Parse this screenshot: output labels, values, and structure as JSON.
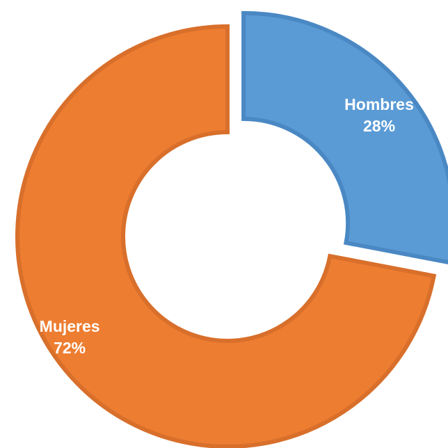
{
  "chart_data": {
    "type": "pie",
    "variant": "doughnut",
    "exploded_slice": "Hombres",
    "categories": [
      "Hombres",
      "Mujeres"
    ],
    "values": [
      28,
      72
    ],
    "percent_labels": [
      "28%",
      "72%"
    ],
    "colors": [
      "#5B9BD5",
      "#ED7D31"
    ],
    "border_colors": [
      "#4A88C4",
      "#D86F2B"
    ],
    "title": "",
    "legend": "none"
  }
}
